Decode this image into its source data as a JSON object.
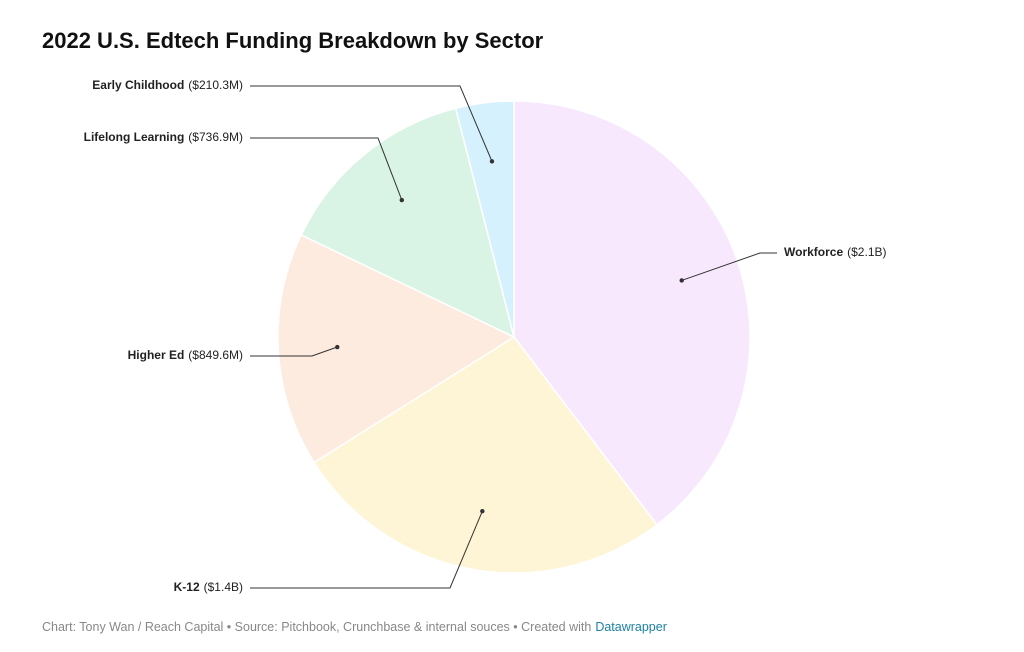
{
  "chart_data": {
    "type": "pie",
    "title": "2022 U.S. Edtech Funding Breakdown by Sector",
    "categories": [
      "Workforce",
      "K-12",
      "Higher Ed",
      "Lifelong Learning",
      "Early Childhood"
    ],
    "values": [
      2100,
      1400,
      849.6,
      736.9,
      210.3
    ],
    "value_labels": [
      "($2.1B)",
      "($1.4B)",
      "($849.6M)",
      "($736.9M)",
      "($210.3M)"
    ],
    "colors": [
      "#f7e8fd",
      "#fdf5d6",
      "#fdebdf",
      "#d9f4e5",
      "#d5f1fd"
    ],
    "footer": "Chart: Tony Wan / Reach Capital • Source: Pitchbook, Crunchbase & internal souces • Created with",
    "footer_link": "Datawrapper"
  }
}
